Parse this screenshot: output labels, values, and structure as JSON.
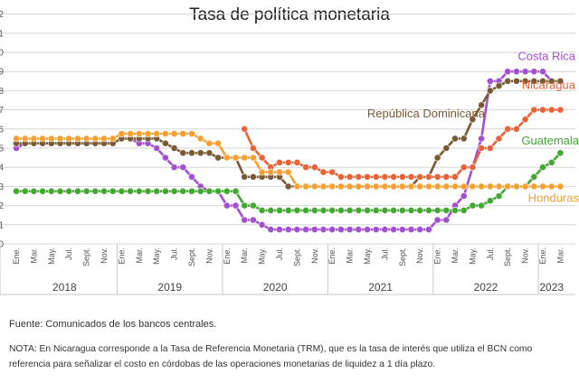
{
  "title": "Tasa de política monetaria",
  "footer": {
    "source": "Fuente: Comunicados de los bancos centrales.",
    "nota": "NOTA: En Nicaragua corresponde a la Tasa de Referencia Monetaria (TRM), que es la tasa de interés que utiliza el BCN como referencia para señalizar el costo en córdobas de las operaciones monetarias de liquidez a 1 día plazo."
  },
  "chart_data": {
    "type": "line",
    "title": "Tasa de política monetaria",
    "grid": true,
    "ylim": [
      0,
      13
    ],
    "x_range": [
      "2018-01",
      "2023-03"
    ],
    "month_tick_labels": [
      "Ene.",
      "Mar.",
      "May.",
      "Jul.",
      "Sept.",
      "Nov."
    ],
    "year_labels": [
      "2018",
      "2019",
      "2020",
      "2021",
      "2022",
      "2023"
    ],
    "series": [
      {
        "name": "Costa Rica",
        "color": "#a24fd0",
        "points": [
          [
            "2018-01",
            5.0
          ],
          [
            "2018-02",
            5.25
          ],
          [
            "2018-06",
            5.25
          ],
          [
            "2018-10",
            5.25
          ],
          [
            "2018-12",
            5.25
          ],
          [
            "2019-01",
            5.5
          ],
          [
            "2019-02",
            5.5
          ],
          [
            "2019-03",
            5.25
          ],
          [
            "2019-04",
            5.25
          ],
          [
            "2019-05",
            5.0
          ],
          [
            "2019-06",
            4.5
          ],
          [
            "2019-07",
            4.0
          ],
          [
            "2019-08",
            4.0
          ],
          [
            "2019-09",
            3.5
          ],
          [
            "2019-10",
            3.0
          ],
          [
            "2019-11",
            2.75
          ],
          [
            "2019-12",
            2.75
          ],
          [
            "2020-01",
            2.0
          ],
          [
            "2020-02",
            2.0
          ],
          [
            "2020-03",
            1.25
          ],
          [
            "2020-04",
            1.25
          ],
          [
            "2020-06",
            0.75
          ],
          [
            "2021-12",
            0.75
          ],
          [
            "2022-01",
            1.25
          ],
          [
            "2022-02",
            1.25
          ],
          [
            "2022-03",
            2.0
          ],
          [
            "2022-04",
            2.5
          ],
          [
            "2022-05",
            4.0
          ],
          [
            "2022-06",
            5.5
          ],
          [
            "2022-07",
            8.5
          ],
          [
            "2022-08",
            8.5
          ],
          [
            "2022-09",
            9.0
          ],
          [
            "2022-10",
            9.0
          ],
          [
            "2022-11",
            9.0
          ],
          [
            "2022-12",
            9.0
          ],
          [
            "2023-01",
            9.0
          ],
          [
            "2023-02",
            8.5
          ],
          [
            "2023-03",
            8.5
          ]
        ]
      },
      {
        "name": "República Dominicana",
        "color": "#7a5a34",
        "points": [
          [
            "2018-01",
            5.25
          ],
          [
            "2018-12",
            5.25
          ],
          [
            "2019-01",
            5.5
          ],
          [
            "2019-05",
            5.5
          ],
          [
            "2019-06",
            5.25
          ],
          [
            "2019-07",
            5.0
          ],
          [
            "2019-08",
            4.75
          ],
          [
            "2019-09",
            4.75
          ],
          [
            "2019-11",
            4.75
          ],
          [
            "2019-12",
            4.5
          ],
          [
            "2020-02",
            4.5
          ],
          [
            "2020-03",
            3.5
          ],
          [
            "2020-04",
            3.5
          ],
          [
            "2020-06",
            3.5
          ],
          [
            "2020-07",
            3.5
          ],
          [
            "2020-08",
            3.0
          ],
          [
            "2020-09",
            3.0
          ],
          [
            "2020-10",
            3.0
          ],
          [
            "2021-08",
            3.0
          ],
          [
            "2021-10",
            3.0
          ],
          [
            "2021-11",
            3.5
          ],
          [
            "2021-12",
            3.5
          ],
          [
            "2022-01",
            4.5
          ],
          [
            "2022-02",
            5.0
          ],
          [
            "2022-03",
            5.5
          ],
          [
            "2022-04",
            5.5
          ],
          [
            "2022-05",
            6.5
          ],
          [
            "2022-06",
            7.25
          ],
          [
            "2022-07",
            8.0
          ],
          [
            "2022-08",
            8.25
          ],
          [
            "2022-09",
            8.5
          ],
          [
            "2022-10",
            8.5
          ],
          [
            "2022-11",
            8.5
          ],
          [
            "2023-03",
            8.5
          ]
        ]
      },
      {
        "name": "Nicaragua",
        "color": "#e8633a",
        "points": [
          [
            "2020-03",
            6.0
          ],
          [
            "2020-04",
            5.0
          ],
          [
            "2020-05",
            4.5
          ],
          [
            "2020-06",
            4.0
          ],
          [
            "2020-07",
            4.25
          ],
          [
            "2020-08",
            4.25
          ],
          [
            "2020-09",
            4.25
          ],
          [
            "2020-10",
            4.0
          ],
          [
            "2020-11",
            4.0
          ],
          [
            "2020-12",
            3.75
          ],
          [
            "2021-01",
            3.75
          ],
          [
            "2021-02",
            3.5
          ],
          [
            "2021-05",
            3.5
          ],
          [
            "2021-06",
            3.5
          ],
          [
            "2021-12",
            3.5
          ],
          [
            "2022-01",
            3.5
          ],
          [
            "2022-02",
            3.5
          ],
          [
            "2022-03",
            3.5
          ],
          [
            "2022-04",
            4.0
          ],
          [
            "2022-05",
            4.0
          ],
          [
            "2022-06",
            5.0
          ],
          [
            "2022-07",
            5.0
          ],
          [
            "2022-08",
            5.5
          ],
          [
            "2022-09",
            6.0
          ],
          [
            "2022-10",
            6.0
          ],
          [
            "2022-11",
            6.5
          ],
          [
            "2022-12",
            7.0
          ],
          [
            "2023-03",
            7.0
          ]
        ]
      },
      {
        "name": "Guatemala",
        "color": "#43a832",
        "points": [
          [
            "2018-01",
            2.75
          ],
          [
            "2019-12",
            2.75
          ],
          [
            "2020-01",
            2.75
          ],
          [
            "2020-02",
            2.75
          ],
          [
            "2020-03",
            2.0
          ],
          [
            "2020-04",
            2.0
          ],
          [
            "2020-05",
            1.75
          ],
          [
            "2020-06",
            1.75
          ],
          [
            "2022-04",
            1.75
          ],
          [
            "2022-05",
            2.0
          ],
          [
            "2022-06",
            2.0
          ],
          [
            "2022-07",
            2.25
          ],
          [
            "2022-08",
            2.5
          ],
          [
            "2022-09",
            3.0
          ],
          [
            "2022-10",
            3.0
          ],
          [
            "2022-11",
            3.0
          ],
          [
            "2022-12",
            3.5
          ],
          [
            "2023-01",
            4.0
          ],
          [
            "2023-02",
            4.25
          ],
          [
            "2023-03",
            4.75
          ]
        ]
      },
      {
        "name": "Honduras",
        "color": "#f5a033",
        "points": [
          [
            "2018-01",
            5.5
          ],
          [
            "2018-12",
            5.5
          ],
          [
            "2019-01",
            5.75
          ],
          [
            "2019-09",
            5.75
          ],
          [
            "2019-10",
            5.5
          ],
          [
            "2019-11",
            5.25
          ],
          [
            "2019-12",
            5.25
          ],
          [
            "2020-01",
            4.5
          ],
          [
            "2020-03",
            4.5
          ],
          [
            "2020-04",
            4.5
          ],
          [
            "2020-05",
            3.75
          ],
          [
            "2020-06",
            3.75
          ],
          [
            "2020-07",
            3.75
          ],
          [
            "2020-08",
            3.75
          ],
          [
            "2020-09",
            3.0
          ],
          [
            "2020-10",
            3.0
          ],
          [
            "2023-03",
            3.0
          ]
        ]
      }
    ]
  }
}
